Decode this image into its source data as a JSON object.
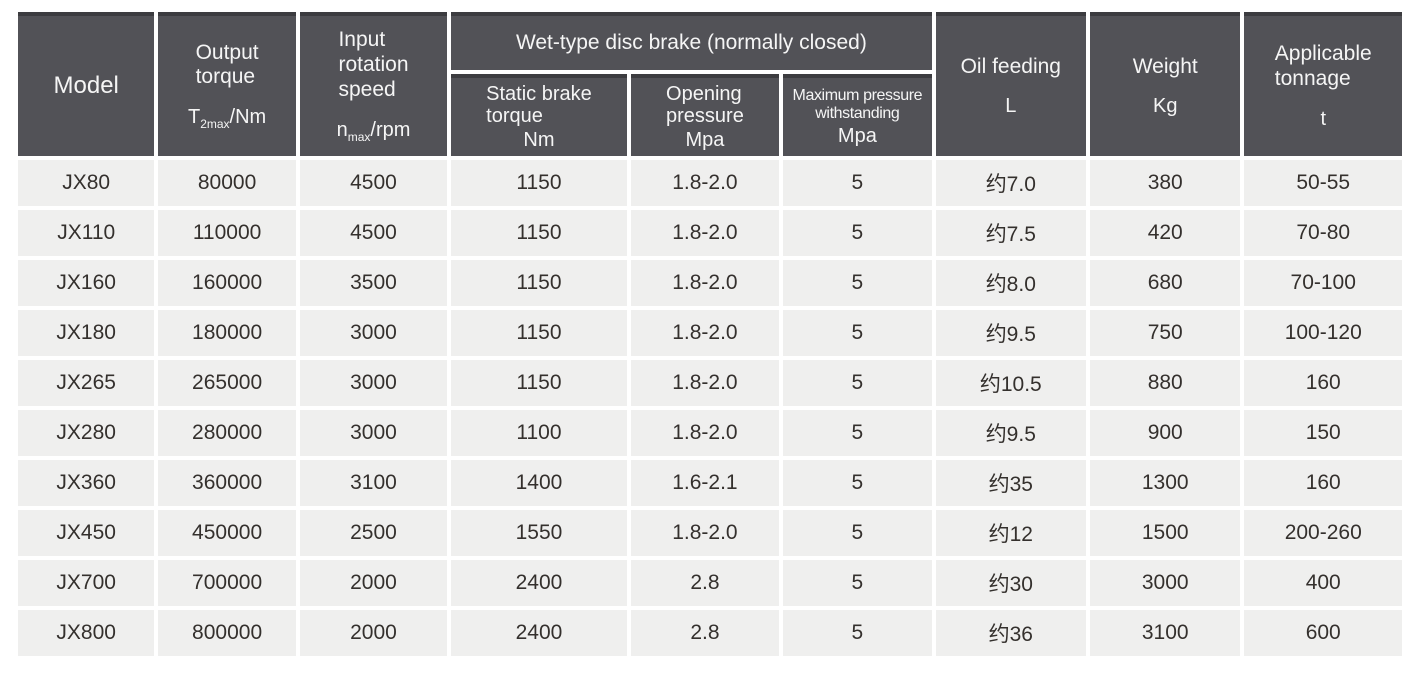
{
  "colors": {
    "header_background": "#525257",
    "header_top_border": "#3C3C40",
    "header_text": "#F5F5F5",
    "cell_background": "#EFEFEE",
    "cell_text": "#34302D",
    "gutter": "#FFFFFF"
  },
  "headers": {
    "model": {
      "label": "Model"
    },
    "output_torque": {
      "label": "Output\ntorque",
      "unit_pre": "T",
      "unit_sub": "2max",
      "unit_post": "/Nm"
    },
    "input_speed": {
      "label": "Input\nrotation\nspeed",
      "unit_pre": "n",
      "unit_sub": "max",
      "unit_post": "/rpm"
    },
    "brake_group": {
      "label": "Wet-type disc brake (normally closed)",
      "static_torque": {
        "label": "Static brake\ntorque",
        "unit": "Nm"
      },
      "opening_pressure": {
        "label": "Opening\npressure",
        "unit": "Mpa"
      },
      "max_pressure": {
        "label": "Maximum pressure\nwithstanding",
        "unit": "Mpa"
      }
    },
    "oil_feeding": {
      "label": "Oil feeding",
      "unit": "L"
    },
    "weight": {
      "label": "Weight",
      "unit": "Kg"
    },
    "tonnage": {
      "label": "Applicable\ntonnage",
      "unit": "t"
    }
  },
  "rows": [
    [
      "JX80",
      "80000",
      "4500",
      "1150",
      "1.8-2.0",
      "5",
      "约7.0",
      "380",
      "50-55"
    ],
    [
      "JX110",
      "110000",
      "4500",
      "1150",
      "1.8-2.0",
      "5",
      "约7.5",
      "420",
      "70-80"
    ],
    [
      "JX160",
      "160000",
      "3500",
      "1150",
      "1.8-2.0",
      "5",
      "约8.0",
      "680",
      "70-100"
    ],
    [
      "JX180",
      "180000",
      "3000",
      "1150",
      "1.8-2.0",
      "5",
      "约9.5",
      "750",
      "100-120"
    ],
    [
      "JX265",
      "265000",
      "3000",
      "1150",
      "1.8-2.0",
      "5",
      "约10.5",
      "880",
      "160"
    ],
    [
      "JX280",
      "280000",
      "3000",
      "1100",
      "1.8-2.0",
      "5",
      "约9.5",
      "900",
      "150"
    ],
    [
      "JX360",
      "360000",
      "3100",
      "1400",
      "1.6-2.1",
      "5",
      "约35",
      "1300",
      "160"
    ],
    [
      "JX450",
      "450000",
      "2500",
      "1550",
      "1.8-2.0",
      "5",
      "约12",
      "1500",
      "200-260"
    ],
    [
      "JX700",
      "700000",
      "2000",
      "2400",
      "2.8",
      "5",
      "约30",
      "3000",
      "400"
    ],
    [
      "JX800",
      "800000",
      "2000",
      "2400",
      "2.8",
      "5",
      "约36",
      "3100",
      "600"
    ]
  ]
}
